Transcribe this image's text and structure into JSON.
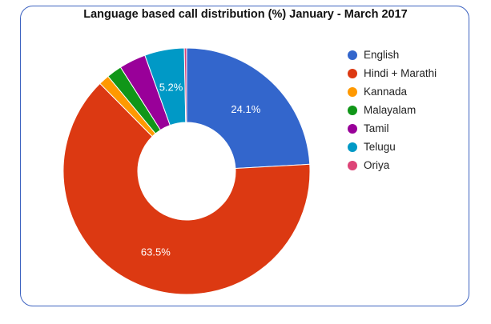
{
  "chart_data": {
    "type": "pie",
    "donut": true,
    "title": "Language based call distribution (%) January - March 2017",
    "legend_position": "right",
    "slices": [
      {
        "name": "English",
        "value": 24.1,
        "label": "24.1%",
        "color": "#3366cc"
      },
      {
        "name": "Hindi + Marathi",
        "value": 63.5,
        "label": "63.5%",
        "color": "#dc3912"
      },
      {
        "name": "Kannada",
        "value": 1.4,
        "label": "",
        "color": "#ff9900"
      },
      {
        "name": "Malayalam",
        "value": 2.0,
        "label": "",
        "color": "#109618"
      },
      {
        "name": "Tamil",
        "value": 3.5,
        "label": "",
        "color": "#990099"
      },
      {
        "name": "Telugu",
        "value": 5.2,
        "label": "5.2%",
        "color": "#0099c6"
      },
      {
        "name": "Oriya",
        "value": 0.3,
        "label": "",
        "color": "#dd4477"
      }
    ]
  }
}
